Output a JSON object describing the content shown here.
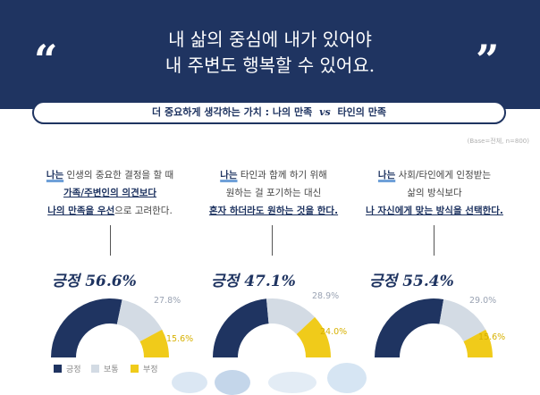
{
  "header": {
    "quote_open": "“",
    "quote_close": "”",
    "headline_line1": "내 삶의 중심에 내가 있어야",
    "headline_line2": "내 주변도 행복할 수 있어요."
  },
  "subtitle": {
    "left": "더 중요하게 생각하는 가치 : 나의 만족",
    "vs": "vs",
    "right": "타인의 만족"
  },
  "base_note": "(Base=전체, n=800)",
  "statements": [
    {
      "naneun": "나는",
      "line1_rest": " 인생의 중요한 결정을 할 때",
      "line2": "가족/주변인의 의견보다",
      "line3_bold": "나의 만족을 우선",
      "line3_rest": "으로 고려한다."
    },
    {
      "naneun": "나는",
      "line1_rest": " 타인과 함께 하기 위해",
      "line2": "원하는 걸 포기하는 대신",
      "line3_bold": "혼자 하더라도 원하는 것을 한다."
    },
    {
      "naneun": "나는",
      "line1_rest": " 사회/타인에게 인정받는",
      "line2": "삶의 방식보다",
      "line3_bold": "나 자신에게 맞는 방식을 선택한다."
    }
  ],
  "legend": [
    {
      "label": "긍정",
      "color": "#1f3461"
    },
    {
      "label": "보통",
      "color": "#d3dbe4"
    },
    {
      "label": "부정",
      "color": "#f0cb1a"
    }
  ],
  "chart_data": {
    "type": "pie",
    "variant": "semicircle-donut",
    "categories": [
      "긍정",
      "보통",
      "부정"
    ],
    "colors": {
      "긍정": "#1f3461",
      "보통": "#d3dbe4",
      "부정": "#f0cb1a"
    },
    "charts": [
      {
        "positive_label": "긍정 56.6%",
        "values": [
          56.6,
          27.8,
          15.6
        ],
        "labels": [
          "56.6%",
          "27.8%",
          "15.6%"
        ]
      },
      {
        "positive_label": "긍정 47.1%",
        "values": [
          47.1,
          28.9,
          24.0
        ],
        "labels": [
          "47.1%",
          "28.9%",
          "24.0%"
        ]
      },
      {
        "positive_label": "긍정 55.4%",
        "values": [
          55.4,
          29.0,
          15.6
        ],
        "labels": [
          "55.4%",
          "29.0%",
          "15.6%"
        ]
      }
    ],
    "legend_position": "bottom-left"
  }
}
